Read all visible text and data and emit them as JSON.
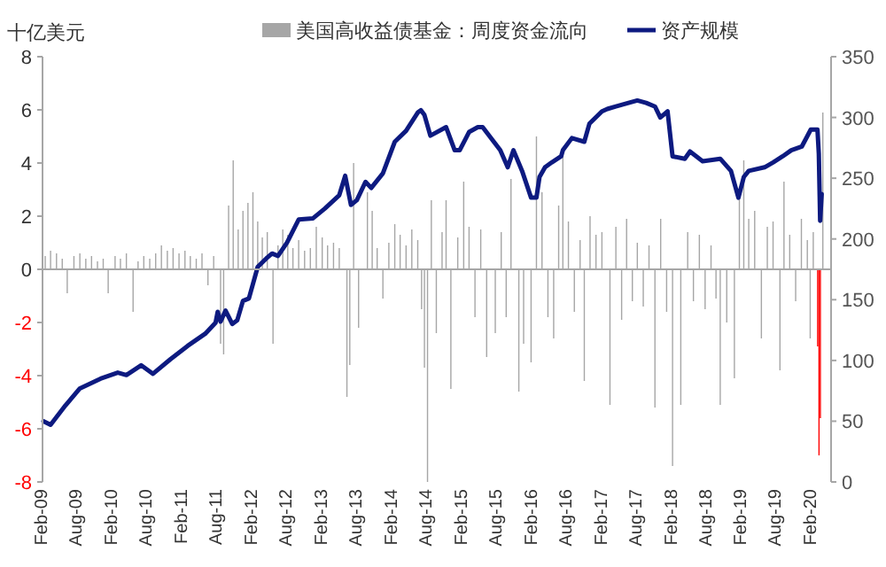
{
  "chart_data": {
    "type": "bar",
    "ylabel": "十亿美元",
    "legend": "top",
    "xlim": [
      "2009-02-01",
      "2020-05-13"
    ],
    "xticks": [
      {
        "value": "2009-02-01",
        "label": "Feb-09"
      },
      {
        "value": "2009-08-01",
        "label": "Aug-09"
      },
      {
        "value": "2010-02-01",
        "label": "Feb-10"
      },
      {
        "value": "2010-08-01",
        "label": "Aug-10"
      },
      {
        "value": "2011-02-01",
        "label": "Feb-11"
      },
      {
        "value": "2011-08-01",
        "label": "Aug-11"
      },
      {
        "value": "2012-02-01",
        "label": "Feb-12"
      },
      {
        "value": "2012-08-01",
        "label": "Aug-12"
      },
      {
        "value": "2013-02-01",
        "label": "Feb-13"
      },
      {
        "value": "2013-08-01",
        "label": "Aug-13"
      },
      {
        "value": "2014-02-01",
        "label": "Feb-14"
      },
      {
        "value": "2014-08-01",
        "label": "Aug-14"
      },
      {
        "value": "2015-02-01",
        "label": "Feb-15"
      },
      {
        "value": "2015-08-01",
        "label": "Aug-15"
      },
      {
        "value": "2016-02-01",
        "label": "Feb-16"
      },
      {
        "value": "2016-08-01",
        "label": "Aug-16"
      },
      {
        "value": "2017-02-01",
        "label": "Feb-17"
      },
      {
        "value": "2017-08-01",
        "label": "Aug-17"
      },
      {
        "value": "2018-02-01",
        "label": "Feb-18"
      },
      {
        "value": "2018-08-01",
        "label": "Aug-18"
      },
      {
        "value": "2019-02-01",
        "label": "Feb-19"
      },
      {
        "value": "2019-08-01",
        "label": "Aug-19"
      },
      {
        "value": "2020-02-01",
        "label": "Feb-20"
      }
    ],
    "ylim": [
      -8,
      8
    ],
    "yticks": [
      -8,
      -6,
      -4,
      -2,
      0,
      2,
      4,
      6,
      8
    ],
    "y2lim": [
      0,
      350
    ],
    "y2ticks": [
      0,
      50,
      100,
      150,
      200,
      250,
      300,
      350
    ],
    "series": [
      {
        "name": "美国高收益债基金：周度资金流向",
        "color": "#a6a6a6",
        "x": [
          "2009-02-15",
          "2009-03-15",
          "2009-04-15",
          "2009-05-15",
          "2009-06-10",
          "2009-07-15",
          "2009-08-15",
          "2009-09-15",
          "2009-10-15",
          "2009-11-15",
          "2009-12-15",
          "2010-01-10",
          "2010-02-15",
          "2010-03-15",
          "2010-04-15",
          "2010-05-20",
          "2010-06-15",
          "2010-07-15",
          "2010-08-15",
          "2010-09-15",
          "2010-10-15",
          "2010-11-15",
          "2010-12-15",
          "2011-01-15",
          "2011-02-15",
          "2011-03-15",
          "2011-04-15",
          "2011-05-15",
          "2011-06-15",
          "2011-07-15",
          "2011-08-20",
          "2011-09-05",
          "2011-10-01",
          "2011-10-25",
          "2011-11-20",
          "2011-12-15",
          "2012-01-10",
          "2012-02-05",
          "2012-03-01",
          "2012-03-25",
          "2012-04-20",
          "2012-05-20",
          "2012-06-15",
          "2012-07-10",
          "2012-08-05",
          "2012-09-01",
          "2012-10-01",
          "2012-11-01",
          "2012-12-01",
          "2013-01-01",
          "2013-02-01",
          "2013-03-01",
          "2013-04-01",
          "2013-05-01",
          "2013-06-10",
          "2013-06-25",
          "2013-07-15",
          "2013-08-10",
          "2013-09-25",
          "2013-10-20",
          "2013-11-15",
          "2013-12-15",
          "2014-01-15",
          "2014-02-15",
          "2014-03-15",
          "2014-04-15",
          "2014-05-15",
          "2014-06-15",
          "2014-07-05",
          "2014-07-20",
          "2014-08-05",
          "2014-08-25",
          "2014-09-20",
          "2014-10-20",
          "2014-11-10",
          "2014-12-05",
          "2015-01-10",
          "2015-02-10",
          "2015-03-10",
          "2015-04-10",
          "2015-05-10",
          "2015-06-10",
          "2015-07-25",
          "2015-08-25",
          "2015-09-20",
          "2015-10-15",
          "2015-11-25",
          "2015-12-20",
          "2016-01-28",
          "2016-02-25",
          "2016-03-25",
          "2016-04-25",
          "2016-05-25",
          "2016-06-20",
          "2016-07-12",
          "2016-08-10",
          "2016-09-10",
          "2016-10-10",
          "2016-11-01",
          "2016-12-01",
          "2017-01-01",
          "2017-02-01",
          "2017-03-15",
          "2017-04-15",
          "2017-05-15",
          "2017-06-10",
          "2017-07-10",
          "2017-08-05",
          "2017-09-05",
          "2017-10-05",
          "2017-11-05",
          "2017-12-05",
          "2018-01-05",
          "2018-02-05",
          "2018-03-20",
          "2018-04-25",
          "2018-05-25",
          "2018-06-25",
          "2018-07-25",
          "2018-08-25",
          "2018-09-20",
          "2018-10-12",
          "2018-11-15",
          "2018-12-25",
          "2019-01-20",
          "2019-02-12",
          "2019-03-10",
          "2019-04-10",
          "2019-05-15",
          "2019-06-15",
          "2019-07-15",
          "2019-08-20",
          "2019-09-10",
          "2019-10-10",
          "2019-11-10",
          "2019-12-10",
          "2020-01-10",
          "2020-01-25",
          "2020-02-10",
          "2020-03-31"
        ],
        "values": [
          0.5,
          0.7,
          0.6,
          0.4,
          -0.9,
          0.5,
          0.6,
          0.4,
          0.5,
          0.3,
          0.4,
          -0.9,
          0.5,
          0.4,
          0.6,
          -1.6,
          0.3,
          0.5,
          0.4,
          0.6,
          0.9,
          0.7,
          0.8,
          0.6,
          0.7,
          0.5,
          0.4,
          0.6,
          -0.6,
          0.5,
          -2.8,
          -3.2,
          2.4,
          4.1,
          1.5,
          2.2,
          2.5,
          2.9,
          1.8,
          1.2,
          1.4,
          -2.8,
          0.9,
          1.5,
          1.3,
          0.8,
          1.1,
          0.7,
          0.8,
          1.6,
          1.2,
          0.9,
          1.0,
          0.8,
          -4.8,
          -3.6,
          4.0,
          -2.2,
          2.9,
          2.2,
          0.8,
          -1.1,
          1.0,
          1.7,
          1.3,
          0.9,
          1.5,
          1.1,
          -1.5,
          -3.7,
          -8.0,
          2.6,
          -2.4,
          1.4,
          2.6,
          -4.5,
          1.2,
          3.3,
          1.6,
          -1.8,
          1.5,
          -3.3,
          -2.4,
          1.4,
          -1.8,
          3.4,
          -4.6,
          -2.8,
          -3.5,
          5.0,
          2.9,
          -1.8,
          -2.6,
          2.4,
          4.5,
          1.8,
          -1.6,
          1.1,
          -4.2,
          2.0,
          1.3,
          1.4,
          -5.1,
          1.6,
          -1.9,
          1.9,
          -1.2,
          1.0,
          -1.4,
          0.9,
          -5.2,
          1.9,
          -1.6,
          -7.4,
          -5.1,
          1.4,
          -1.2,
          1.3,
          -1.5,
          0.9,
          -1.1,
          -5.1,
          -2.0,
          -4.1,
          2.7,
          4.1,
          1.9,
          2.2,
          -2.6,
          1.6,
          1.8,
          -3.8,
          3.3,
          1.3,
          -1.2,
          1.9,
          1.1,
          -2.6,
          1.4,
          5.9
        ]
      },
      {
        "color": "#ff0000",
        "x": [
          "2020-03-04",
          "2020-03-11",
          "2020-03-18"
        ],
        "values": [
          -2.9,
          -7.0,
          -5.6
        ]
      },
      {
        "name": "资产规模",
        "type": "line",
        "axis": "y2",
        "color": "#0d1a80",
        "x": [
          "2009-02-06",
          "2009-03-15",
          "2009-06-01",
          "2009-08-15",
          "2009-12-01",
          "2010-03-01",
          "2010-04-15",
          "2010-07-01",
          "2010-09-01",
          "2010-12-01",
          "2011-03-01",
          "2011-06-01",
          "2011-07-25",
          "2011-08-05",
          "2011-08-20",
          "2011-09-15",
          "2011-10-20",
          "2011-11-15",
          "2011-12-15",
          "2012-01-15",
          "2012-03-01",
          "2012-04-15",
          "2012-05-15",
          "2012-06-15",
          "2012-08-01",
          "2012-10-01",
          "2012-12-15",
          "2013-02-15",
          "2013-05-01",
          "2013-06-01",
          "2013-07-01",
          "2013-08-01",
          "2013-09-15",
          "2013-10-15",
          "2013-12-15",
          "2014-02-15",
          "2014-04-15",
          "2014-06-15",
          "2014-07-01",
          "2014-07-20",
          "2014-08-20",
          "2014-11-10",
          "2014-12-25",
          "2015-01-20",
          "2015-03-10",
          "2015-04-25",
          "2015-05-20",
          "2015-08-20",
          "2015-09-28",
          "2015-10-28",
          "2015-12-12",
          "2016-01-28",
          "2016-02-25",
          "2016-03-12",
          "2016-04-10",
          "2016-05-15",
          "2016-07-03",
          "2016-07-12",
          "2016-08-28",
          "2016-11-01",
          "2016-11-28",
          "2017-02-01",
          "2017-03-01",
          "2017-04-15",
          "2017-06-20",
          "2017-08-05",
          "2017-09-20",
          "2017-11-05",
          "2017-12-03",
          "2018-01-10",
          "2018-02-05",
          "2018-04-10",
          "2018-05-07",
          "2018-07-12",
          "2018-10-12",
          "2018-12-07",
          "2019-01-15",
          "2019-02-12",
          "2019-03-10",
          "2019-06-01",
          "2019-07-15",
          "2019-09-03",
          "2019-10-18",
          "2019-12-12",
          "2020-01-28",
          "2020-03-03",
          "2020-03-10",
          "2020-03-17",
          "2020-03-25"
        ],
        "values": [
          50,
          47,
          63,
          77,
          85,
          90,
          88,
          96,
          89,
          101,
          112,
          122,
          131,
          140,
          132,
          141,
          130,
          133,
          149,
          151,
          177,
          184,
          188,
          186,
          197,
          216,
          217,
          225,
          236,
          252,
          228,
          232,
          247,
          242,
          254,
          280,
          289,
          304,
          306,
          302,
          285,
          292,
          273,
          273,
          288,
          292,
          292,
          273,
          259,
          273,
          256,
          234,
          234,
          251,
          259,
          263,
          268,
          273,
          283,
          280,
          295,
          305,
          307,
          309,
          312,
          314,
          312,
          309,
          300,
          305,
          268,
          266,
          272,
          264,
          266,
          256,
          234,
          251,
          256,
          259,
          263,
          268,
          273,
          276,
          290,
          290,
          270,
          215,
          237
        ]
      }
    ]
  }
}
